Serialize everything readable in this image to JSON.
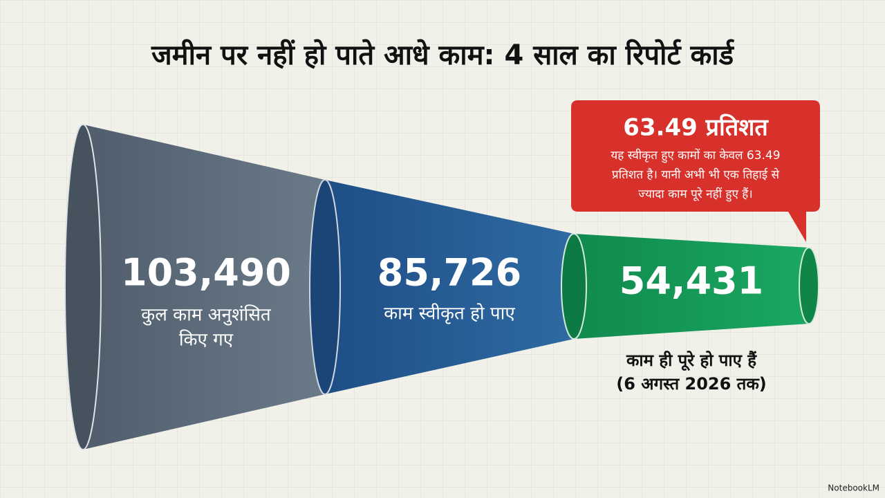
{
  "title": "जमीन पर नहीं हो पाते आधे काम: 4 साल का रिपोर्ट कार्ड",
  "stages": [
    {
      "value": "103,490",
      "label": [
        "कुल काम अनुशंसित",
        "किए गए"
      ]
    },
    {
      "value": "85,726",
      "label": [
        "काम स्वीकृत हो पाए"
      ]
    },
    {
      "value": "54,431",
      "label": [
        "काम ही पूरे हो पाए हैं",
        "(6 अगस्त 2026 तक)"
      ]
    }
  ],
  "callout": {
    "title": "63.49 प्रतिशत",
    "text": [
      "यह स्वीकृत हुए कामों का केवल 63.49",
      "प्रतिशत है। यानी अभी भी एक तिहाई से",
      "ज्यादा काम पूरे नहीं हुए हैं।"
    ]
  },
  "footer": "NotebookLM"
}
